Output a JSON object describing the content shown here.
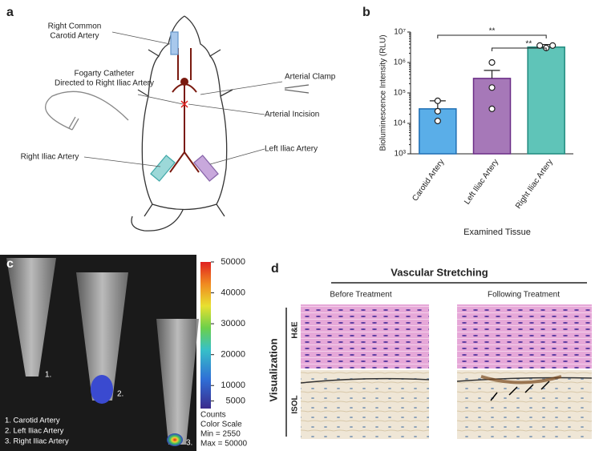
{
  "panel_a": {
    "letter": "a",
    "labels": [
      [
        "Right Common",
        "Carotid Artery"
      ],
      [
        "Fogarty Catheter",
        "Directed to Right Iliac Artery"
      ],
      [
        "Arterial Clamp"
      ],
      [
        "Arterial Incision"
      ],
      [
        "Right Iliac Artery"
      ],
      [
        "Left Iliac Artery"
      ]
    ]
  },
  "chart_data": {
    "type": "bar",
    "letter": "b",
    "y_label": "Bioluminescence Intensity (RLU)",
    "x_label": "Examined Tissue",
    "categories": [
      "Carotid Artery",
      "Left Iliac Artery",
      "Right Iliac Artery"
    ],
    "values": [
      30000,
      300000,
      3200000
    ],
    "errors": [
      25000,
      250000,
      700000
    ],
    "points": [
      [
        55000,
        25000,
        12000
      ],
      [
        1000000,
        150000,
        30000
      ],
      [
        3600000,
        3000000,
        3600000
      ]
    ],
    "colors": [
      "#5aaee8",
      "#a678b8",
      "#5fc4b8"
    ],
    "edge_colors": [
      "#1f6fb4",
      "#6a2c86",
      "#1f8a7e"
    ],
    "log_y": true,
    "ylim": [
      1000,
      10000000
    ],
    "yticks": [
      {
        "value": 1000,
        "label": "10³"
      },
      {
        "value": 10000,
        "label": "10⁴"
      },
      {
        "value": 100000,
        "label": "10⁵"
      },
      {
        "value": 1000000,
        "label": "10⁶"
      },
      {
        "value": 10000000,
        "label": "10⁷"
      }
    ],
    "significance": [
      "**",
      "**"
    ]
  },
  "panel_c": {
    "letter": "c",
    "tube_labels": [
      "1.",
      "2.",
      "3."
    ],
    "legend": [
      "1. Carotid Artery",
      "2. Left Iliac Artery",
      "3. Right Iliac Artery"
    ],
    "scale_texts": [
      "Counts",
      "Color Scale",
      "Min = 2550",
      "Max = 50000"
    ],
    "colorbar_lim": [
      2550,
      50000
    ],
    "colorbar_ticks": [
      5000,
      10000,
      20000,
      30000,
      40000,
      50000
    ]
  },
  "panel_d": {
    "letter": "d",
    "title": "Vascular Stretching",
    "columns": [
      "Before Treatment",
      "Following Treatment"
    ],
    "row_group": "Visualization",
    "rows": [
      "H&E",
      "ISOL"
    ]
  }
}
